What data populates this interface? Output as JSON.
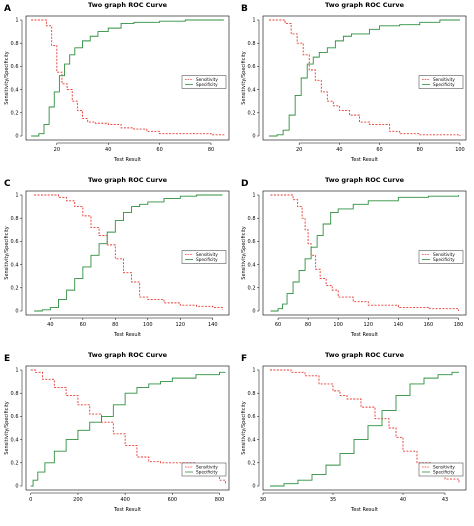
{
  "colors": {
    "sensitivity": "#e8392f",
    "specificity": "#2f8f3f",
    "axis": "#000000"
  },
  "chart_data": [
    {
      "label": "A",
      "type": "line",
      "title": "Two graph ROC Curve",
      "xlabel": "Test Result",
      "ylabel": "Sensitivity/Specificity",
      "xlim": [
        8,
        87
      ],
      "ylim": [
        0,
        1
      ],
      "xticks": [
        20,
        40,
        60,
        80
      ],
      "yticks": [
        0,
        0.2,
        0.4,
        0.6,
        0.8,
        1
      ],
      "legend": "center-right",
      "series": [
        {
          "name": "Sensitivity",
          "style": "dashed",
          "x": [
            10,
            13,
            16,
            18,
            20,
            22,
            24,
            26,
            28,
            30,
            32,
            35,
            40,
            45,
            50,
            55,
            60,
            70,
            80,
            85
          ],
          "y": [
            1.0,
            1.0,
            0.95,
            0.78,
            0.55,
            0.45,
            0.4,
            0.3,
            0.22,
            0.15,
            0.12,
            0.11,
            0.1,
            0.07,
            0.06,
            0.04,
            0.02,
            0.02,
            0.01,
            0.0
          ]
        },
        {
          "name": "Specificity",
          "style": "solid",
          "x": [
            10,
            13,
            15,
            17,
            19,
            21,
            23,
            25,
            27,
            30,
            33,
            36,
            40,
            45,
            50,
            60,
            70,
            80,
            85
          ],
          "y": [
            0.0,
            0.02,
            0.1,
            0.25,
            0.38,
            0.52,
            0.62,
            0.7,
            0.76,
            0.82,
            0.86,
            0.9,
            0.93,
            0.97,
            0.98,
            0.99,
            1.0,
            1.0,
            1.0
          ]
        }
      ]
    },
    {
      "label": "B",
      "type": "line",
      "title": "Two graph ROC Curve",
      "xlabel": "Test Result",
      "ylabel": "Sensitivity/Specificity",
      "xlim": [
        2,
        103
      ],
      "ylim": [
        0,
        1
      ],
      "xticks": [
        20,
        40,
        60,
        80,
        100
      ],
      "yticks": [
        0,
        0.2,
        0.4,
        0.6,
        0.8,
        1
      ],
      "legend": "center-right",
      "series": [
        {
          "name": "Sensitivity",
          "style": "dashed",
          "x": [
            5,
            10,
            13,
            16,
            19,
            22,
            25,
            28,
            31,
            34,
            37,
            40,
            45,
            50,
            55,
            60,
            65,
            70,
            80,
            90,
            100
          ],
          "y": [
            1.0,
            1.0,
            0.97,
            0.88,
            0.8,
            0.7,
            0.57,
            0.48,
            0.38,
            0.3,
            0.26,
            0.22,
            0.18,
            0.12,
            0.1,
            0.1,
            0.04,
            0.02,
            0.01,
            0.01,
            0.0
          ]
        },
        {
          "name": "Specificity",
          "style": "solid",
          "x": [
            5,
            9,
            12,
            15,
            18,
            21,
            24,
            27,
            30,
            34,
            38,
            42,
            46,
            50,
            55,
            60,
            70,
            80,
            90,
            100
          ],
          "y": [
            0.0,
            0.01,
            0.05,
            0.18,
            0.35,
            0.5,
            0.62,
            0.68,
            0.72,
            0.76,
            0.82,
            0.86,
            0.88,
            0.88,
            0.92,
            0.95,
            0.96,
            0.98,
            1.0,
            1.0
          ]
        }
      ]
    },
    {
      "label": "C",
      "type": "line",
      "title": "Two graph ROC Curve",
      "xlabel": "Test Result",
      "ylabel": "Sensitivity/Specificity",
      "xlim": [
        25,
        150
      ],
      "ylim": [
        0,
        1
      ],
      "xticks": [
        40,
        60,
        80,
        100,
        120,
        140
      ],
      "yticks": [
        0,
        0.2,
        0.4,
        0.6,
        0.8,
        1
      ],
      "legend": "center-right",
      "series": [
        {
          "name": "Sensitivity",
          "style": "dashed",
          "x": [
            30,
            40,
            45,
            50,
            55,
            60,
            65,
            70,
            75,
            80,
            85,
            90,
            95,
            100,
            110,
            120,
            130,
            140,
            146
          ],
          "y": [
            1.0,
            1.0,
            0.98,
            0.95,
            0.9,
            0.82,
            0.72,
            0.65,
            0.57,
            0.45,
            0.33,
            0.25,
            0.12,
            0.1,
            0.07,
            0.05,
            0.04,
            0.03,
            0.01
          ]
        },
        {
          "name": "Specificity",
          "style": "solid",
          "x": [
            30,
            35,
            40,
            45,
            50,
            55,
            60,
            65,
            70,
            75,
            80,
            85,
            90,
            95,
            100,
            110,
            120,
            130,
            146
          ],
          "y": [
            0.0,
            0.01,
            0.03,
            0.1,
            0.18,
            0.28,
            0.38,
            0.48,
            0.58,
            0.68,
            0.78,
            0.85,
            0.9,
            0.92,
            0.94,
            0.97,
            0.99,
            1.0,
            1.0
          ]
        }
      ]
    },
    {
      "label": "D",
      "type": "line",
      "title": "Two graph ROC Curve",
      "xlabel": "Test Result",
      "ylabel": "Sensitivity/Specificity",
      "xlim": [
        50,
        185
      ],
      "ylim": [
        0,
        1
      ],
      "xticks": [
        60,
        80,
        100,
        120,
        140,
        160,
        180
      ],
      "yticks": [
        0,
        0.2,
        0.4,
        0.6,
        0.8,
        1
      ],
      "legend": "center-right",
      "series": [
        {
          "name": "Sensitivity",
          "style": "dashed",
          "x": [
            55,
            65,
            70,
            73,
            76,
            78,
            80,
            82,
            85,
            88,
            92,
            96,
            100,
            110,
            120,
            140,
            160,
            180
          ],
          "y": [
            1.0,
            1.0,
            0.96,
            0.9,
            0.8,
            0.7,
            0.58,
            0.48,
            0.36,
            0.28,
            0.22,
            0.18,
            0.12,
            0.08,
            0.05,
            0.03,
            0.02,
            0.0
          ]
        },
        {
          "name": "Specificity",
          "style": "solid",
          "x": [
            55,
            60,
            63,
            66,
            70,
            74,
            78,
            82,
            86,
            90,
            95,
            100,
            110,
            120,
            140,
            160,
            180
          ],
          "y": [
            0.0,
            0.02,
            0.06,
            0.15,
            0.25,
            0.35,
            0.45,
            0.55,
            0.65,
            0.75,
            0.85,
            0.88,
            0.92,
            0.95,
            0.98,
            0.99,
            1.0
          ]
        }
      ]
    },
    {
      "label": "E",
      "type": "line",
      "title": "Two graph ROC Curve",
      "xlabel": "Test Result",
      "ylabel": "Sensitivity/Specificity",
      "xlim": [
        -20,
        840
      ],
      "ylim": [
        0,
        1
      ],
      "xticks": [
        0,
        200,
        400,
        600,
        800
      ],
      "yticks": [
        0,
        0.2,
        0.4,
        0.6,
        0.8,
        1
      ],
      "legend": "bottom-right",
      "series": [
        {
          "name": "Sensitivity",
          "style": "dashed",
          "x": [
            0,
            20,
            50,
            100,
            150,
            200,
            250,
            300,
            350,
            400,
            450,
            500,
            550,
            600,
            650,
            700,
            750,
            800,
            825
          ],
          "y": [
            1.0,
            0.98,
            0.92,
            0.85,
            0.78,
            0.7,
            0.62,
            0.55,
            0.45,
            0.35,
            0.25,
            0.21,
            0.2,
            0.2,
            0.2,
            0.15,
            0.1,
            0.05,
            0.01
          ]
        },
        {
          "name": "Specificity",
          "style": "solid",
          "x": [
            0,
            10,
            30,
            60,
            100,
            150,
            200,
            250,
            300,
            350,
            400,
            450,
            500,
            550,
            600,
            700,
            800,
            825
          ],
          "y": [
            0.0,
            0.05,
            0.12,
            0.2,
            0.3,
            0.4,
            0.48,
            0.55,
            0.6,
            0.7,
            0.8,
            0.85,
            0.88,
            0.9,
            0.93,
            0.96,
            0.98,
            0.98
          ]
        }
      ]
    },
    {
      "label": "F",
      "type": "line",
      "title": "Two graph ROC Curve",
      "xlabel": "Test Result",
      "ylabel": "Sensitivity/Specificity",
      "xlim": [
        30,
        44.5
      ],
      "ylim": [
        0,
        1
      ],
      "xticks": [
        30,
        35,
        40,
        43
      ],
      "yticks": [
        0,
        0.2,
        0.4,
        0.6,
        0.8,
        1
      ],
      "legend": "bottom-right",
      "series": [
        {
          "name": "Sensitivity",
          "style": "dashed",
          "x": [
            30.5,
            32,
            33,
            34,
            35,
            35.5,
            36,
            37,
            38,
            39,
            39.5,
            40,
            41,
            42,
            43,
            44
          ],
          "y": [
            1.0,
            0.98,
            0.95,
            0.88,
            0.82,
            0.78,
            0.75,
            0.68,
            0.58,
            0.5,
            0.42,
            0.3,
            0.2,
            0.12,
            0.06,
            0.02
          ]
        },
        {
          "name": "Specificity",
          "style": "solid",
          "x": [
            30.5,
            31.5,
            32.5,
            33.5,
            34.5,
            35.5,
            36.5,
            37.5,
            38.5,
            39.5,
            40.5,
            41.5,
            42.5,
            43.5,
            44
          ],
          "y": [
            0.0,
            0.02,
            0.05,
            0.1,
            0.18,
            0.28,
            0.4,
            0.52,
            0.65,
            0.78,
            0.88,
            0.93,
            0.96,
            0.98,
            0.98
          ]
        }
      ]
    }
  ]
}
